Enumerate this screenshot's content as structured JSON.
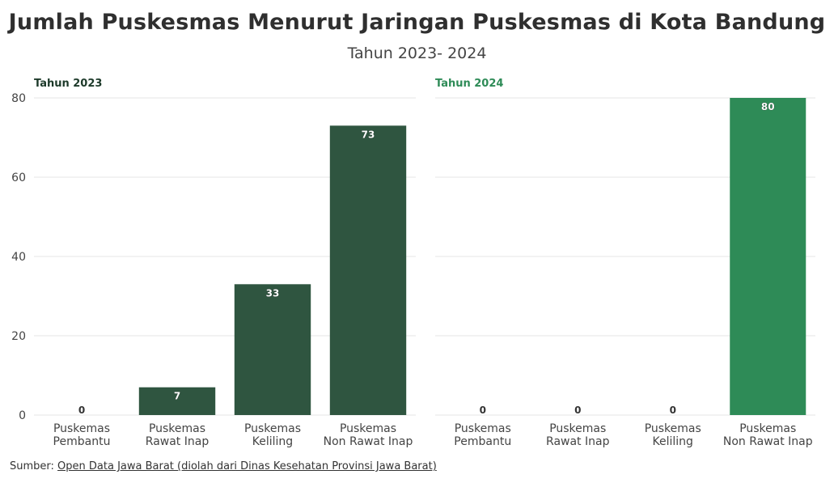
{
  "title": "Jumlah Puskesmas Menurut Jaringan Puskesmas di Kota Bandung",
  "subtitle": "Tahun 2023- 2024",
  "source": {
    "prefix": "Sumber:",
    "link_text": "Open Data Jawa Barat (diolah dari Dinas Kesehatan Provinsi Jawa Barat)"
  },
  "chart_data": [
    {
      "type": "bar",
      "panel_title": "Tahun 2023",
      "categories": [
        "Puskemas Pembantu",
        "Puskemas Rawat Inap",
        "Puskemas Keliling",
        "Puskemas Non Rawat Inap"
      ],
      "values": [
        0,
        7,
        33,
        73
      ],
      "ylim": [
        0,
        80
      ],
      "yticks": [
        0,
        20,
        40,
        60,
        80
      ],
      "color": "#2f5540",
      "title_color": "#1d3a2a",
      "grid": true
    },
    {
      "type": "bar",
      "panel_title": "Tahun 2024",
      "categories": [
        "Puskemas Pembantu",
        "Puskemas Rawat Inap",
        "Puskemas Keliling",
        "Puskemas Non Rawat Inap"
      ],
      "values": [
        0,
        0,
        0,
        80
      ],
      "ylim": [
        0,
        80
      ],
      "yticks": [
        0,
        20,
        40,
        60,
        80
      ],
      "color": "#2e8b57",
      "title_color": "#2e8b57",
      "grid": true
    }
  ]
}
